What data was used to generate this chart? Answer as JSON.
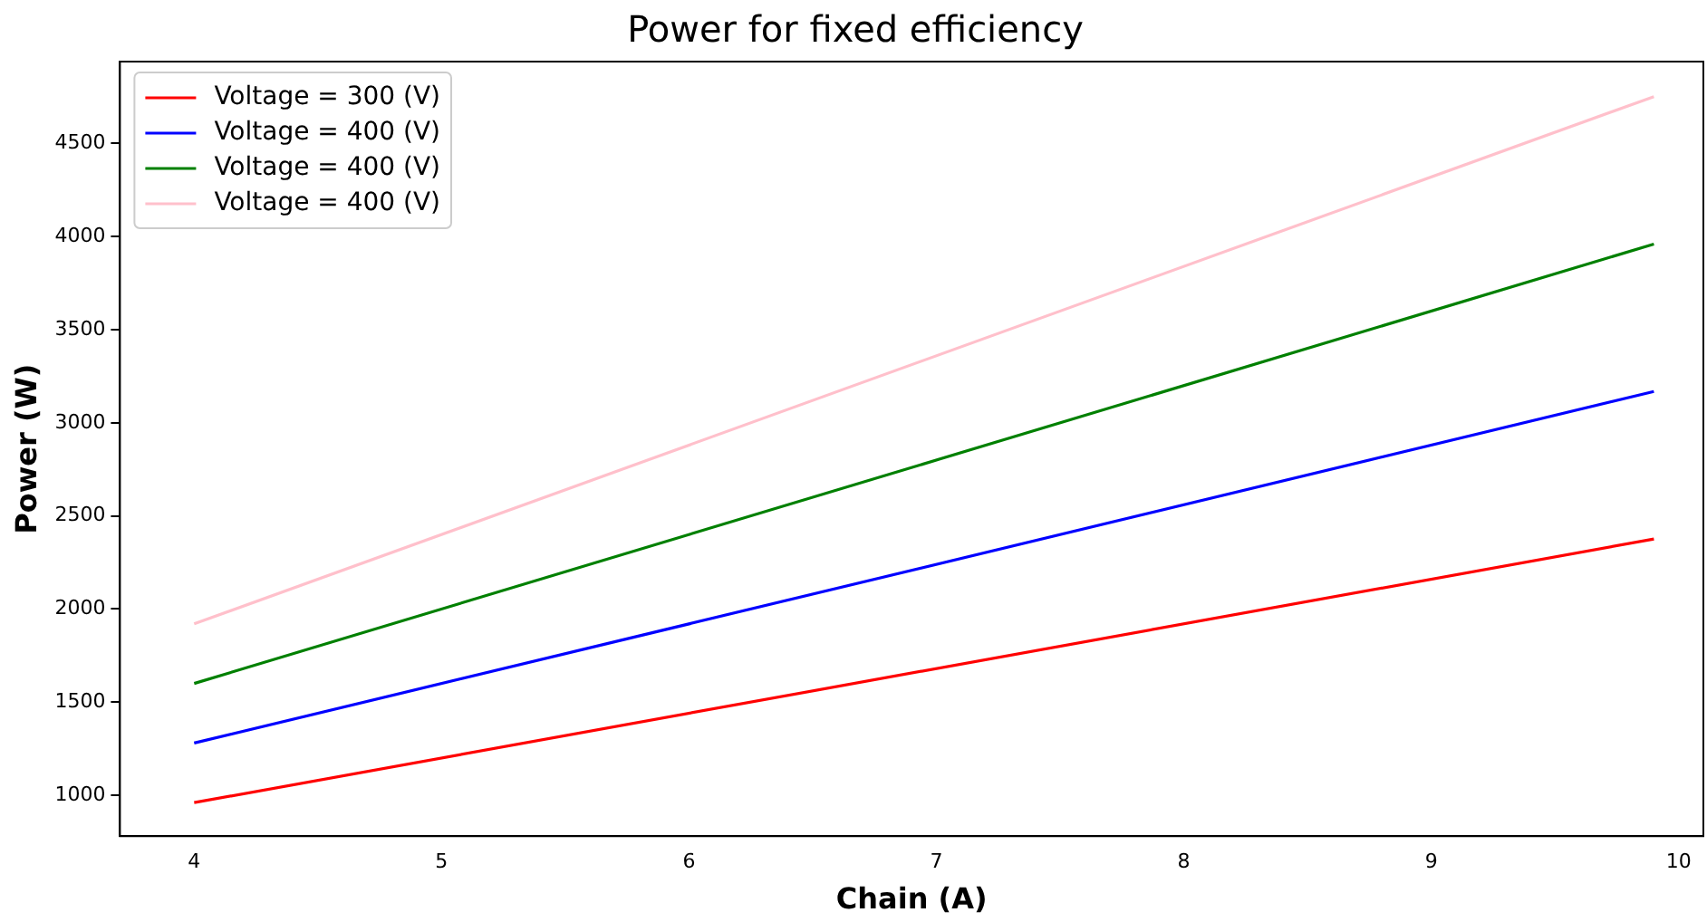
{
  "chart_data": {
    "type": "line",
    "title": "Power for fixed efficiency",
    "xlabel": "Chain (A)",
    "ylabel": "Power (W)",
    "x": [
      4,
      9.9
    ],
    "series": [
      {
        "name": "Voltage = 300 (V)",
        "color": "#ff0000",
        "values": [
          960,
          2376
        ]
      },
      {
        "name": "Voltage = 400 (V)",
        "color": "#0000ff",
        "values": [
          1280,
          3168
        ]
      },
      {
        "name": "Voltage = 400 (V)",
        "color": "#008000",
        "values": [
          1600,
          3960
        ]
      },
      {
        "name": "Voltage = 400 (V)",
        "color": "#ffc0cb",
        "values": [
          1920,
          4752
        ]
      }
    ],
    "xlim": [
      3.7,
      10.1
    ],
    "xticks": [
      4,
      5,
      6,
      7,
      8,
      9,
      10
    ],
    "ylim": [
      780,
      4940
    ],
    "yticks": [
      1000,
      1500,
      2000,
      2500,
      3000,
      3500,
      4000,
      4500
    ],
    "grid": false,
    "legend": "top left",
    "marker": "none",
    "line_style": "solid"
  }
}
